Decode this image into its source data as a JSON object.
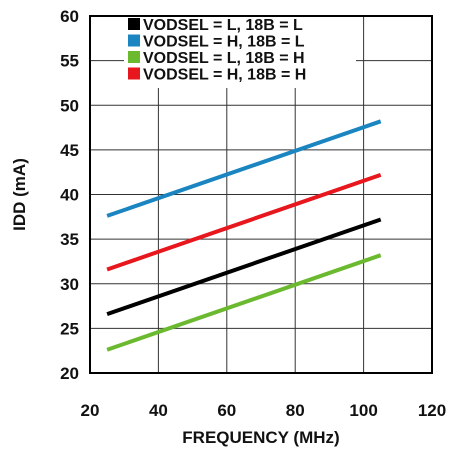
{
  "chart_data": {
    "type": "line",
    "xlabel": "FREQUENCY (MHz)",
    "ylabel": "IDD (mA)",
    "xlim": [
      20,
      120
    ],
    "ylim": [
      20,
      60
    ],
    "xticks": [
      "20",
      "40",
      "60",
      "80",
      "100",
      "120"
    ],
    "yticks": [
      "20",
      "25",
      "30",
      "35",
      "40",
      "45",
      "50",
      "55",
      "60"
    ],
    "grid": true,
    "legend_position": "top-left",
    "series": [
      {
        "name": "VODSEL = L, 18B = L",
        "color": "#000000",
        "x": [
          25,
          105
        ],
        "y": [
          26.6,
          37.2
        ]
      },
      {
        "name": "VODSEL = H, 18B = L",
        "color": "#1a85c1",
        "x": [
          25,
          105
        ],
        "y": [
          37.6,
          48.2
        ]
      },
      {
        "name": "VODSEL = L, 18B = H",
        "color": "#6ab92f",
        "x": [
          25,
          105
        ],
        "y": [
          22.6,
          33.2
        ]
      },
      {
        "name": "VODSEL = H, 18B = H",
        "color": "#e8161d",
        "x": [
          25,
          105
        ],
        "y": [
          31.6,
          42.2
        ]
      }
    ]
  }
}
